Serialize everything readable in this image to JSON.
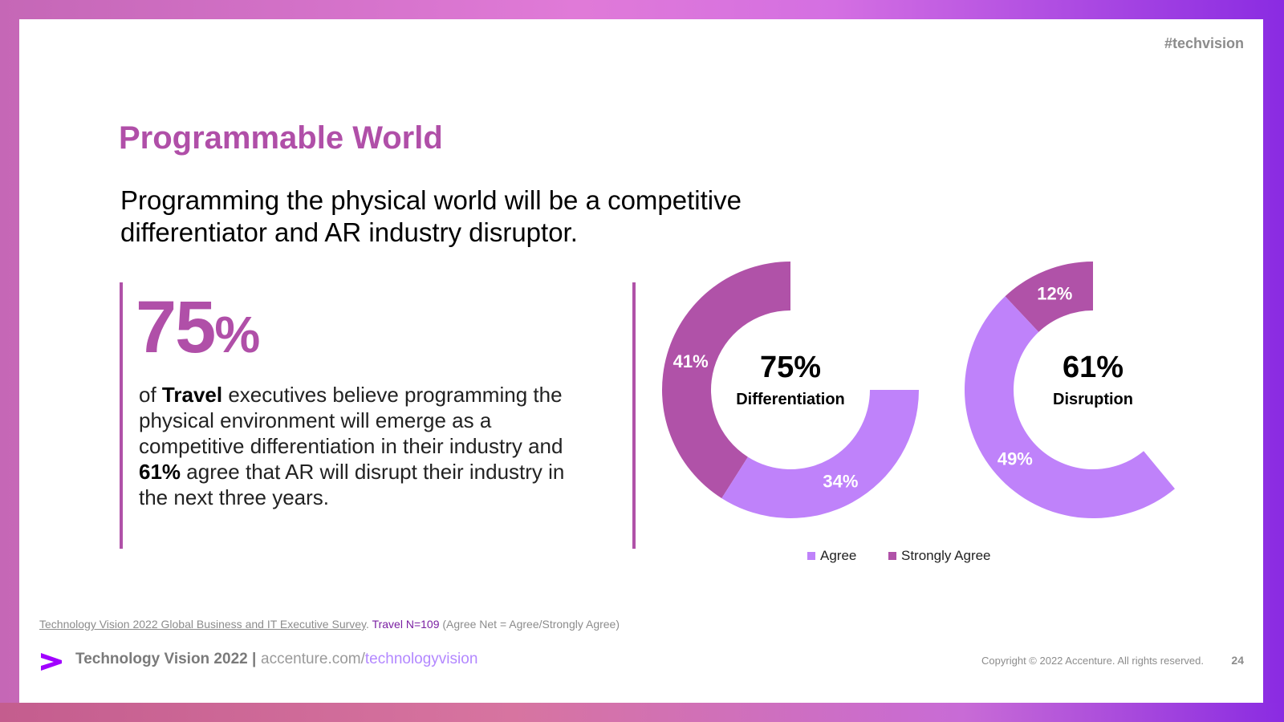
{
  "hashtag": "#techvision",
  "title": "Programmable World",
  "subtitle": "Programming the physical world will be a competitive differentiator and AR industry disruptor.",
  "stat": {
    "number": "75",
    "percent": "%",
    "text_1": "of ",
    "text_bold_1": "Travel",
    "text_2": " executives believe programming the physical environment will emerge as a competitive differentiation in their industry and ",
    "text_bold_2": "61%",
    "text_3": " agree that AR will disrupt their industry in the next three years."
  },
  "source": {
    "link_text": "Technology Vision 2022 Global Business and IT Executive Survey",
    "sep": ". ",
    "n_text": "Travel N=109",
    "note": " (Agree Net = Agree/Strongly Agree)"
  },
  "footer": {
    "brand": "Technology Vision 2022 |",
    "url_host": "accenture.com/",
    "url_path": "technologyvision",
    "copyright": "Copyright © 2022 Accenture. All rights reserved.",
    "page": "24"
  },
  "colors": {
    "agree": "#bf82fa",
    "strongly_agree": "#b052a8",
    "brand_purple": "#a100ff"
  },
  "chart_data": [
    {
      "type": "pie",
      "variant": "donut",
      "center_value": "75%",
      "center_label": "Differentiation",
      "total": 100,
      "series": [
        {
          "name": "Strongly Agree",
          "value": 41,
          "label": "41%"
        },
        {
          "name": "Agree",
          "value": 34,
          "label": "34%"
        }
      ]
    },
    {
      "type": "pie",
      "variant": "donut",
      "center_value": "61%",
      "center_label": "Disruption",
      "total": 100,
      "series": [
        {
          "name": "Strongly Agree",
          "value": 12,
          "label": "12%"
        },
        {
          "name": "Agree",
          "value": 49,
          "label": "49%"
        }
      ]
    }
  ],
  "legend": [
    {
      "name": "Agree",
      "color": "#bf82fa"
    },
    {
      "name": "Strongly Agree",
      "color": "#b052a8"
    }
  ]
}
